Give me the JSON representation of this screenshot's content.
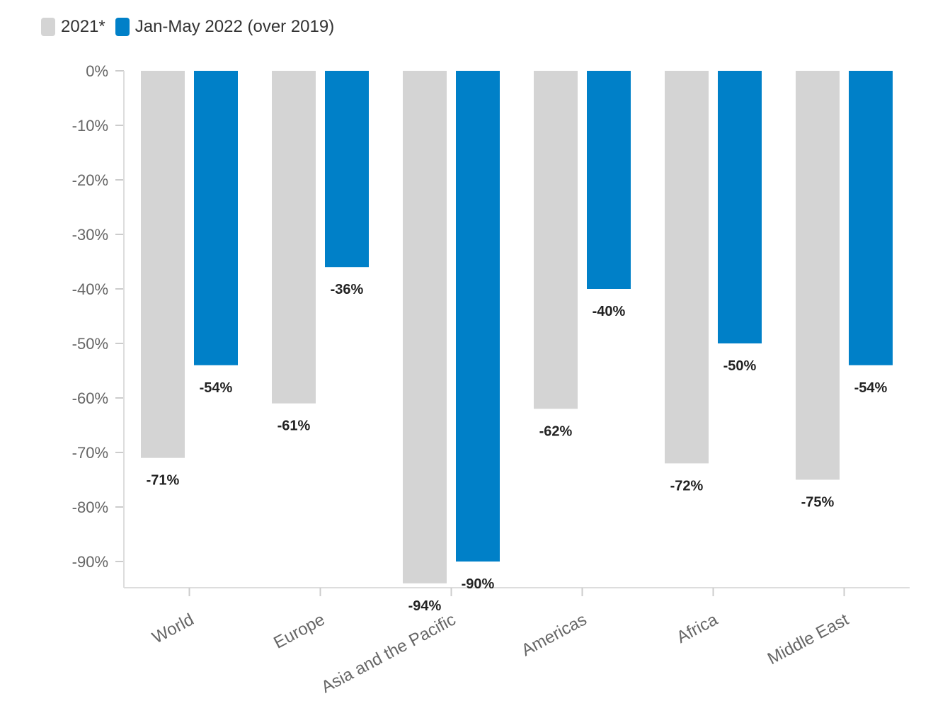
{
  "chart_data": {
    "type": "bar",
    "title": "",
    "xlabel": "",
    "ylabel": "",
    "categories": [
      "World",
      "Europe",
      "Asia and the Pacific",
      "Americas",
      "Africa",
      "Middle East"
    ],
    "series": [
      {
        "name": "2021*",
        "color": "#d4d4d4",
        "values": [
          -71,
          -61,
          -94,
          -62,
          -72,
          -75
        ]
      },
      {
        "name": "Jan-May 2022 (over 2019)",
        "color": "#0080c8",
        "values": [
          -54,
          -36,
          -90,
          -40,
          -50,
          -54
        ]
      }
    ],
    "data_labels": [
      [
        "-71%",
        "-61%",
        "-94%",
        "-62%",
        "-72%",
        "-75%"
      ],
      [
        "-54%",
        "-36%",
        "-90%",
        "-40%",
        "-50%",
        "-54%"
      ]
    ],
    "ylim": [
      -95,
      0
    ],
    "yticks": [
      0,
      -10,
      -20,
      -30,
      -40,
      -50,
      -60,
      -70,
      -80,
      -90
    ],
    "ytick_labels": [
      "0%",
      "-10%",
      "-20%",
      "-30%",
      "-40%",
      "-50%",
      "-60%",
      "-70%",
      "-80%",
      "-90%"
    ],
    "legend_position": "top-left",
    "grid": false
  }
}
